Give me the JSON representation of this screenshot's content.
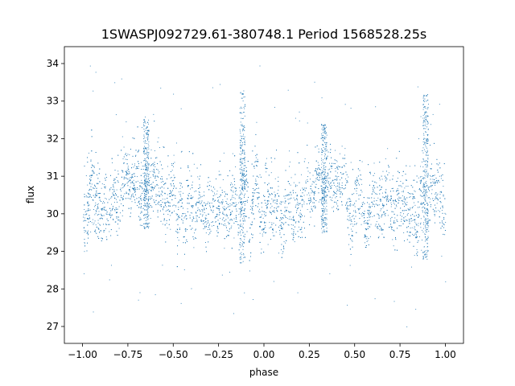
{
  "chart_data": {
    "type": "scatter",
    "title": "1SWASPJ092729.61-380748.1 Period 1568528.25s",
    "xlabel": "phase",
    "ylabel": "flux",
    "xlim": [
      -1.1,
      1.1
    ],
    "ylim": [
      26.55,
      34.45
    ],
    "xticks": [
      -1.0,
      -0.75,
      -0.5,
      -0.25,
      0.0,
      0.25,
      0.5,
      0.75,
      1.0
    ],
    "xtick_labels": [
      "−1.00",
      "−0.75",
      "−0.50",
      "−0.25",
      "0.00",
      "0.25",
      "0.50",
      "0.75",
      "1.00"
    ],
    "yticks": [
      27,
      28,
      29,
      30,
      31,
      32,
      33,
      34
    ],
    "ytick_labels": [
      "27",
      "28",
      "29",
      "30",
      "31",
      "32",
      "33",
      "34"
    ],
    "grid": false,
    "legend": "none",
    "marker_color": "#1f77b4",
    "marker": "tiny dots",
    "series": [
      {
        "x": [
          -0.99,
          -0.97,
          -0.95,
          -0.93,
          -0.9,
          -0.87,
          -0.85,
          -0.83,
          -0.8,
          -0.78,
          -0.76,
          -0.74,
          -0.72,
          -0.7,
          -0.68,
          -0.66,
          -0.64,
          -0.62,
          -0.6,
          -0.58,
          -0.56,
          -0.54,
          -0.52,
          -0.5,
          -0.48,
          -0.46,
          -0.44,
          -0.42,
          -0.4,
          -0.38,
          -0.36,
          -0.34,
          -0.32,
          -0.3,
          -0.28,
          -0.26,
          -0.24,
          -0.22,
          -0.2,
          -0.18,
          -0.16,
          -0.14,
          -0.12,
          -0.1,
          -0.08,
          -0.06,
          -0.04,
          -0.02,
          0.0,
          0.02,
          0.04,
          0.06,
          0.08,
          0.1,
          0.12,
          0.14,
          0.16,
          0.18,
          0.2,
          0.22,
          0.24,
          0.26,
          0.28,
          0.3,
          0.32,
          0.34,
          0.36,
          0.38,
          0.4,
          0.42,
          0.44,
          0.46,
          0.48,
          0.5,
          0.52,
          0.54,
          0.56,
          0.58,
          0.6,
          0.62,
          0.64,
          0.66,
          0.68,
          0.7,
          0.72,
          0.74,
          0.76,
          0.78,
          0.8,
          0.82,
          0.84,
          0.86,
          0.88,
          0.9,
          0.92,
          0.94,
          0.96,
          0.98,
          1.0
        ],
        "y": [
          29.9,
          30.1,
          30.8,
          30.3,
          30.0,
          30.4,
          30.0,
          30.5,
          30.2,
          30.7,
          31.1,
          30.6,
          30.9,
          31.0,
          30.5,
          31.1,
          30.4,
          30.8,
          31.0,
          30.6,
          30.4,
          30.2,
          30.3,
          30.9,
          29.6,
          30.6,
          29.4,
          30.4,
          30.2,
          29.8,
          30.6,
          30.1,
          29.5,
          30.3,
          30.4,
          30.0,
          30.5,
          30.2,
          29.9,
          30.4,
          30.6,
          29.5,
          30.7,
          30.9,
          29.3,
          30.5,
          31.0,
          29.8,
          30.0,
          30.6,
          30.0,
          30.3,
          30.2,
          29.6,
          30.1,
          30.3,
          29.9,
          30.4,
          30.1,
          30.5,
          31.0,
          30.2,
          30.6,
          31.1,
          30.4,
          30.9,
          31.2,
          30.5,
          30.9,
          30.7,
          31.3,
          30.4,
          29.6,
          30.2,
          30.5,
          30.3,
          29.4,
          30.1,
          30.6,
          29.8,
          30.4,
          30.0,
          30.5,
          30.2,
          29.9,
          30.3,
          30.6,
          30.1,
          29.8,
          30.2,
          29.4,
          30.5,
          30.6,
          29.8,
          31.0,
          30.4,
          30.9,
          30.1,
          30.0
        ],
        "note_bands": [
          {
            "x": -0.65,
            "y_min": 29.6,
            "y_max": 32.6
          },
          {
            "x": -0.12,
            "y_min": 28.7,
            "y_max": 33.3
          },
          {
            "x": 0.33,
            "y_min": 29.5,
            "y_max": 32.4
          },
          {
            "x": 0.89,
            "y_min": 28.8,
            "y_max": 33.2
          }
        ]
      }
    ]
  }
}
